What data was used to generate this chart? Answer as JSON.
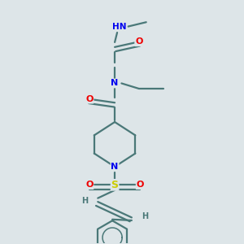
{
  "background_color": "#dde5e8",
  "bond_color": "#4a7878",
  "atom_colors": {
    "N": "#0000ee",
    "O": "#ee0000",
    "S": "#cccc00",
    "H": "#4a7878"
  },
  "bond_width": 1.6,
  "dbo": 0.018,
  "figsize": [
    3.0,
    3.0
  ],
  "dpi": 100,
  "xlim": [
    0.0,
    1.0
  ],
  "ylim": [
    0.0,
    1.0
  ]
}
